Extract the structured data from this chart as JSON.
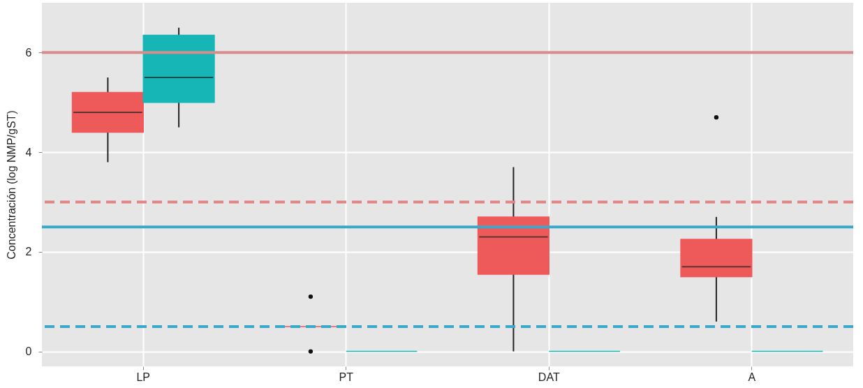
{
  "chart_data": {
    "type": "box",
    "ylabel": "Concentración (log NMP/gST)",
    "categories": [
      "LP",
      "PT",
      "DAT",
      "A"
    ],
    "ylim": [
      -0.3,
      7.0
    ],
    "yticks": [
      0,
      2,
      4,
      6
    ],
    "grid": true,
    "legend": false,
    "series": [
      {
        "color": "#ee5a5a",
        "boxes": [
          {
            "low": 3.8,
            "q1": 4.4,
            "median": 4.8,
            "q3": 5.2,
            "high": 5.5
          },
          {
            "low": 0.5,
            "q1": 0.5,
            "median": 0.5,
            "q3": 0.5,
            "high": 0.5,
            "outliers": [
              1.1,
              0
            ]
          },
          {
            "low": 0,
            "q1": 1.55,
            "median": 2.3,
            "q3": 2.7,
            "high": 3.7
          },
          {
            "low": 0.6,
            "q1": 1.5,
            "median": 1.7,
            "q3": 2.25,
            "high": 2.7,
            "outliers": [
              4.7
            ]
          }
        ]
      },
      {
        "color": "#17b6b6",
        "boxes": [
          {
            "low": 4.5,
            "q1": 5.0,
            "median": 5.5,
            "q3": 6.35,
            "high": 6.5
          },
          {
            "low": 0,
            "q1": 0,
            "median": 0,
            "q3": 0,
            "high": 0
          },
          {
            "low": 0,
            "q1": 0,
            "median": 0,
            "q3": 0,
            "high": 0
          },
          {
            "low": 0,
            "q1": 0,
            "median": 0,
            "q3": 0,
            "high": 0
          }
        ]
      }
    ],
    "ref_lines": [
      {
        "axis": "y",
        "value": 6,
        "color": "#d98c8c",
        "line_style": "solid"
      },
      {
        "axis": "y",
        "value": 3,
        "color": "#e08484",
        "line_style": "dashed"
      },
      {
        "axis": "y",
        "value": 2.5,
        "color": "#3aa8c8",
        "line_style": "solid"
      },
      {
        "axis": "y",
        "value": 0.5,
        "color": "#3aa8c8",
        "line_style": "dashed"
      }
    ]
  }
}
